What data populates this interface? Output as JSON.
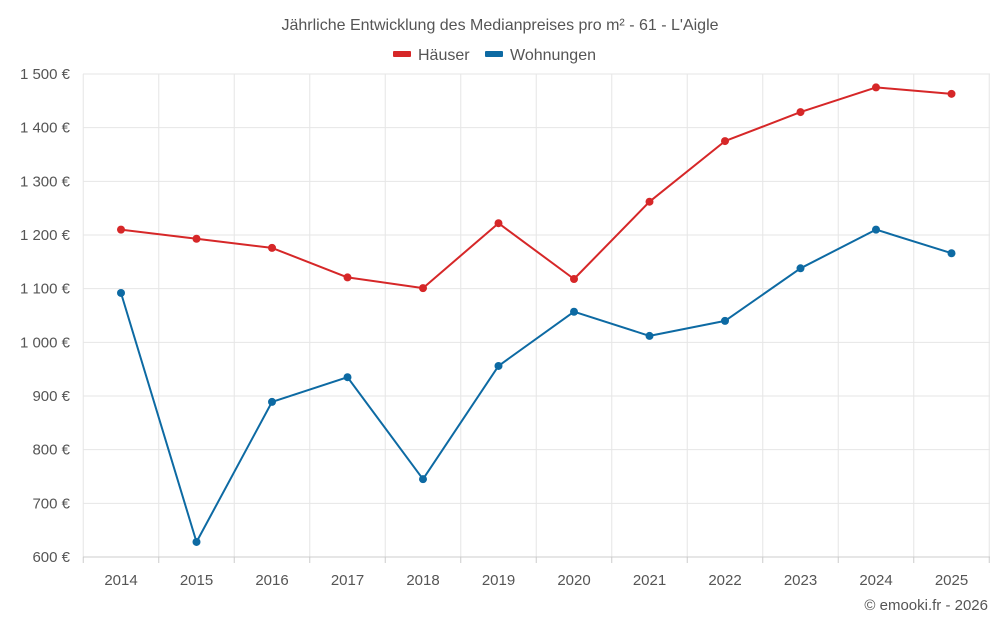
{
  "chart_data": {
    "type": "line",
    "title": "Jährliche Entwicklung des Medianpreises pro m² - 61 - L'Aigle",
    "categories": [
      "2014",
      "2015",
      "2016",
      "2017",
      "2018",
      "2019",
      "2020",
      "2021",
      "2022",
      "2023",
      "2024",
      "2025"
    ],
    "series": [
      {
        "name": "Häuser",
        "color": "#d62728",
        "values": [
          1210,
          1193,
          1176,
          1121,
          1101,
          1222,
          1118,
          1262,
          1375,
          1429,
          1475,
          1463
        ]
      },
      {
        "name": "Wohnungen",
        "color": "#0d6aa3",
        "values": [
          1092,
          628,
          889,
          935,
          745,
          956,
          1057,
          1012,
          1040,
          1138,
          1210,
          1166
        ]
      }
    ],
    "y_ticks": [
      {
        "value": 600,
        "label": "600 €"
      },
      {
        "value": 700,
        "label": "700 €"
      },
      {
        "value": 800,
        "label": "800 €"
      },
      {
        "value": 900,
        "label": "900 €"
      },
      {
        "value": 1000,
        "label": "1 000 €"
      },
      {
        "value": 1100,
        "label": "1 100 €"
      },
      {
        "value": 1200,
        "label": "1 200 €"
      },
      {
        "value": 1300,
        "label": "1 300 €"
      },
      {
        "value": 1400,
        "label": "1 400 €"
      },
      {
        "value": 1500,
        "label": "1 500 €"
      }
    ],
    "ylim": [
      600,
      1500
    ],
    "xlabel": "",
    "ylabel": "",
    "grid": true,
    "legend_position": "top-center"
  },
  "credit": "© emooki.fr - 2026"
}
